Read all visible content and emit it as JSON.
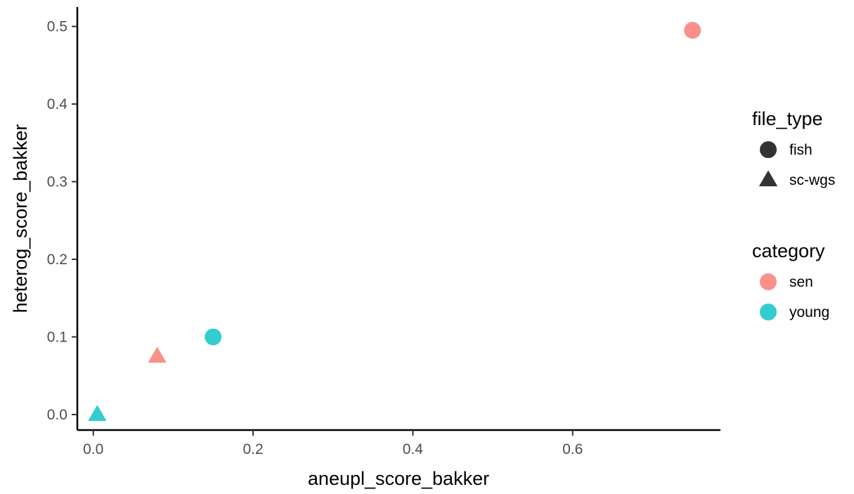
{
  "chart_data": {
    "type": "scatter",
    "xlabel": "aneupl_score_bakker",
    "ylabel": "heterog_score_bakker",
    "xlim": [
      -0.02,
      0.785
    ],
    "ylim": [
      -0.02,
      0.525
    ],
    "x_ticks": [
      0.0,
      0.2,
      0.4,
      0.6
    ],
    "x_tick_labels": [
      "0.0",
      "0.2",
      "0.4",
      "0.6"
    ],
    "y_ticks": [
      0.0,
      0.1,
      0.2,
      0.3,
      0.4,
      0.5
    ],
    "y_tick_labels": [
      "0.0",
      "0.1",
      "0.2",
      "0.3",
      "0.4",
      "0.5"
    ],
    "grid": false,
    "legend_position": "right",
    "legends": [
      {
        "title": "file_type",
        "aesthetic": "shape",
        "entries": [
          {
            "label": "fish",
            "shape": "circle"
          },
          {
            "label": "sc-wgs",
            "shape": "triangle"
          }
        ]
      },
      {
        "title": "category",
        "aesthetic": "color",
        "entries": [
          {
            "label": "sen",
            "color": "#F8766D"
          },
          {
            "label": "young",
            "color": "#00BFC4"
          }
        ]
      }
    ],
    "points": [
      {
        "x": 0.75,
        "y": 0.495,
        "file_type": "fish",
        "category": "sen"
      },
      {
        "x": 0.15,
        "y": 0.1,
        "file_type": "fish",
        "category": "young"
      },
      {
        "x": 0.08,
        "y": 0.075,
        "file_type": "sc-wgs",
        "category": "sen"
      },
      {
        "x": 0.005,
        "y": 0.0,
        "file_type": "sc-wgs",
        "category": "young"
      }
    ]
  }
}
